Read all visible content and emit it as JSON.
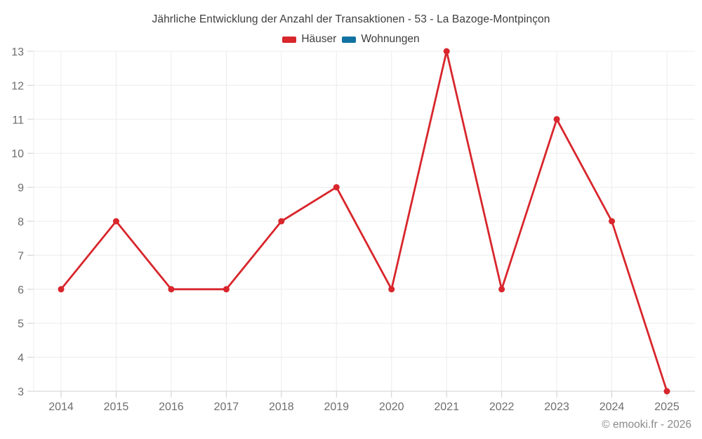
{
  "chart_data": {
    "type": "line",
    "title": "Jährliche Entwicklung der Anzahl der Transaktionen - 53 - La Bazoge-Montpinçon",
    "categories": [
      "2014",
      "2015",
      "2016",
      "2017",
      "2018",
      "2019",
      "2020",
      "2021",
      "2022",
      "2023",
      "2024",
      "2025"
    ],
    "series": [
      {
        "name": "Häuser",
        "color": "#d8262c",
        "values": [
          6,
          8,
          6,
          6,
          8,
          9,
          6,
          13,
          6,
          11,
          8,
          3
        ]
      },
      {
        "name": "Wohnungen",
        "color": "#1272a2",
        "values": []
      }
    ],
    "xlabel": "",
    "ylabel": "",
    "ylim": [
      3,
      13
    ],
    "ytick_step": 1,
    "yticks": [
      3,
      4,
      5,
      6,
      7,
      8,
      9,
      10,
      11,
      12,
      13
    ],
    "grid": true,
    "legend_position": "top",
    "colors": {
      "gridline": "#ececec",
      "axis_line": "#cfcfcf",
      "tick": "#cfcfcf",
      "tick_label": "#6e6e6e",
      "title_text": "#3d3d3d"
    }
  },
  "footer": {
    "copyright": "© emooki.fr - 2026"
  }
}
